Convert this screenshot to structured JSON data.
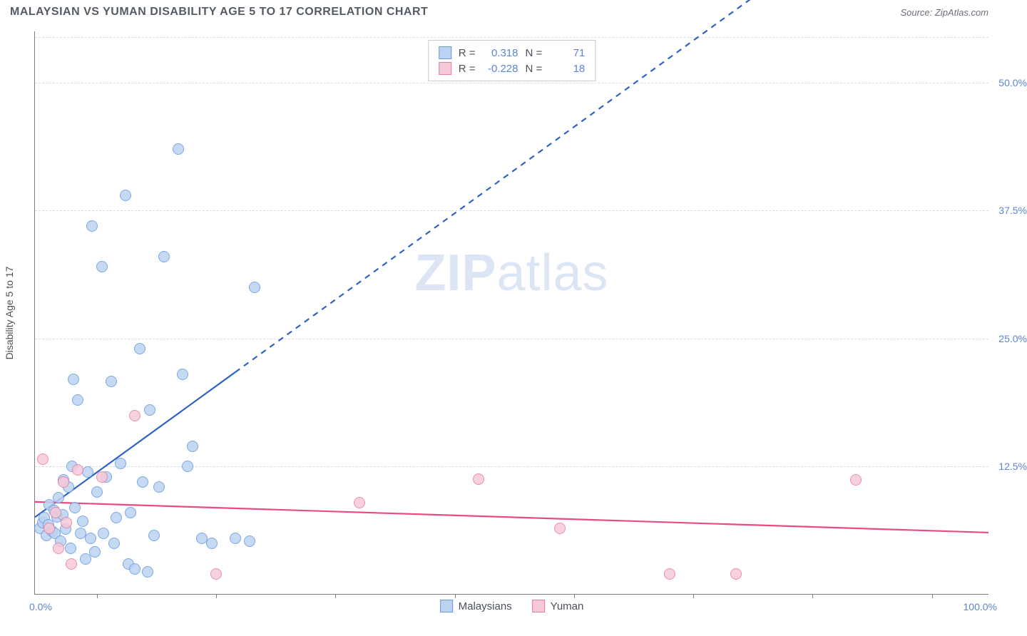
{
  "title": "MALAYSIAN VS YUMAN DISABILITY AGE 5 TO 17 CORRELATION CHART",
  "source_label": "Source: ZipAtlas.com",
  "watermark": {
    "zip": "ZIP",
    "atlas": "atlas"
  },
  "y_axis_title": "Disability Age 5 to 17",
  "chart": {
    "type": "scatter",
    "xlim": [
      0,
      100
    ],
    "ylim": [
      0,
      55
    ],
    "x_min_label": "0.0%",
    "x_max_label": "100.0%",
    "y_ticks": [
      {
        "v": 12.5,
        "label": "12.5%"
      },
      {
        "v": 25.0,
        "label": "25.0%"
      },
      {
        "v": 37.5,
        "label": "37.5%"
      },
      {
        "v": 50.0,
        "label": "50.0%"
      }
    ],
    "x_ticks_minor": [
      6.5,
      19,
      31.5,
      44,
      56.5,
      69,
      81.5,
      94
    ],
    "background_color": "#ffffff",
    "grid_color": "#d9dde2",
    "axis_color": "#7d7d7d",
    "tick_label_color": "#5b85d6",
    "marker_radius": 8,
    "marker_border_width": 1.3,
    "marker_fill_opacity": 0.35,
    "series": [
      {
        "name": "Malaysians",
        "color_stroke": "#6699e0",
        "color_fill": "#bcd3f2",
        "r_value": "0.318",
        "n_value": "71",
        "trend": {
          "x1": 0,
          "y1": 7.5,
          "x2": 100,
          "y2": 75,
          "color": "#2f62c9",
          "width": 2.2,
          "solid_until_x": 21
        },
        "points": [
          [
            0.5,
            6.5
          ],
          [
            0.8,
            7.0
          ],
          [
            1.0,
            7.5
          ],
          [
            1.2,
            5.8
          ],
          [
            1.4,
            6.8
          ],
          [
            1.5,
            8.8
          ],
          [
            1.8,
            6.2
          ],
          [
            2.0,
            8.2
          ],
          [
            2.1,
            6.0
          ],
          [
            2.3,
            7.6
          ],
          [
            2.5,
            9.5
          ],
          [
            2.7,
            5.2
          ],
          [
            2.9,
            7.8
          ],
          [
            3.0,
            11.2
          ],
          [
            3.2,
            6.4
          ],
          [
            3.5,
            10.5
          ],
          [
            3.7,
            4.5
          ],
          [
            3.9,
            12.5
          ],
          [
            4.0,
            21.0
          ],
          [
            4.2,
            8.5
          ],
          [
            4.5,
            19.0
          ],
          [
            4.8,
            6.0
          ],
          [
            5.0,
            7.2
          ],
          [
            5.3,
            3.5
          ],
          [
            5.5,
            12.0
          ],
          [
            5.8,
            5.5
          ],
          [
            6.0,
            36.0
          ],
          [
            6.3,
            4.2
          ],
          [
            6.5,
            10.0
          ],
          [
            7.0,
            32.0
          ],
          [
            7.2,
            6.0
          ],
          [
            7.5,
            11.5
          ],
          [
            8.0,
            20.8
          ],
          [
            8.3,
            5.0
          ],
          [
            8.5,
            7.5
          ],
          [
            9.0,
            12.8
          ],
          [
            9.5,
            39.0
          ],
          [
            9.8,
            3.0
          ],
          [
            10.0,
            8.0
          ],
          [
            10.5,
            2.5
          ],
          [
            11.0,
            24.0
          ],
          [
            11.3,
            11.0
          ],
          [
            11.8,
            2.2
          ],
          [
            12.0,
            18.0
          ],
          [
            12.5,
            5.8
          ],
          [
            13.0,
            10.5
          ],
          [
            13.5,
            33.0
          ],
          [
            15.0,
            43.5
          ],
          [
            15.5,
            21.5
          ],
          [
            16.0,
            12.5
          ],
          [
            16.5,
            14.5
          ],
          [
            17.5,
            5.5
          ],
          [
            18.5,
            5.0
          ],
          [
            21.0,
            5.5
          ],
          [
            22.5,
            5.2
          ],
          [
            23.0,
            30.0
          ]
        ]
      },
      {
        "name": "Yuman",
        "color_stroke": "#e77ba0",
        "color_fill": "#f6c9d8",
        "r_value": "-0.228",
        "n_value": "18",
        "trend": {
          "x1": 0,
          "y1": 9.0,
          "x2": 100,
          "y2": 6.0,
          "color": "#e94b7f",
          "width": 2.2,
          "solid_until_x": 100
        },
        "points": [
          [
            0.8,
            13.2
          ],
          [
            1.5,
            6.5
          ],
          [
            2.2,
            8.0
          ],
          [
            2.5,
            4.5
          ],
          [
            3.0,
            11.0
          ],
          [
            3.3,
            7.0
          ],
          [
            3.8,
            3.0
          ],
          [
            4.5,
            12.2
          ],
          [
            7.0,
            11.5
          ],
          [
            10.5,
            17.5
          ],
          [
            19.0,
            2.0
          ],
          [
            34.0,
            9.0
          ],
          [
            46.5,
            11.3
          ],
          [
            55.0,
            6.5
          ],
          [
            66.5,
            2.0
          ],
          [
            73.5,
            2.0
          ],
          [
            86.0,
            11.2
          ]
        ]
      }
    ]
  },
  "legend_box": {
    "r_label": "R =",
    "n_label": "N ="
  },
  "bottom_legend": {
    "label1": "Malaysians",
    "label2": "Yuman"
  }
}
